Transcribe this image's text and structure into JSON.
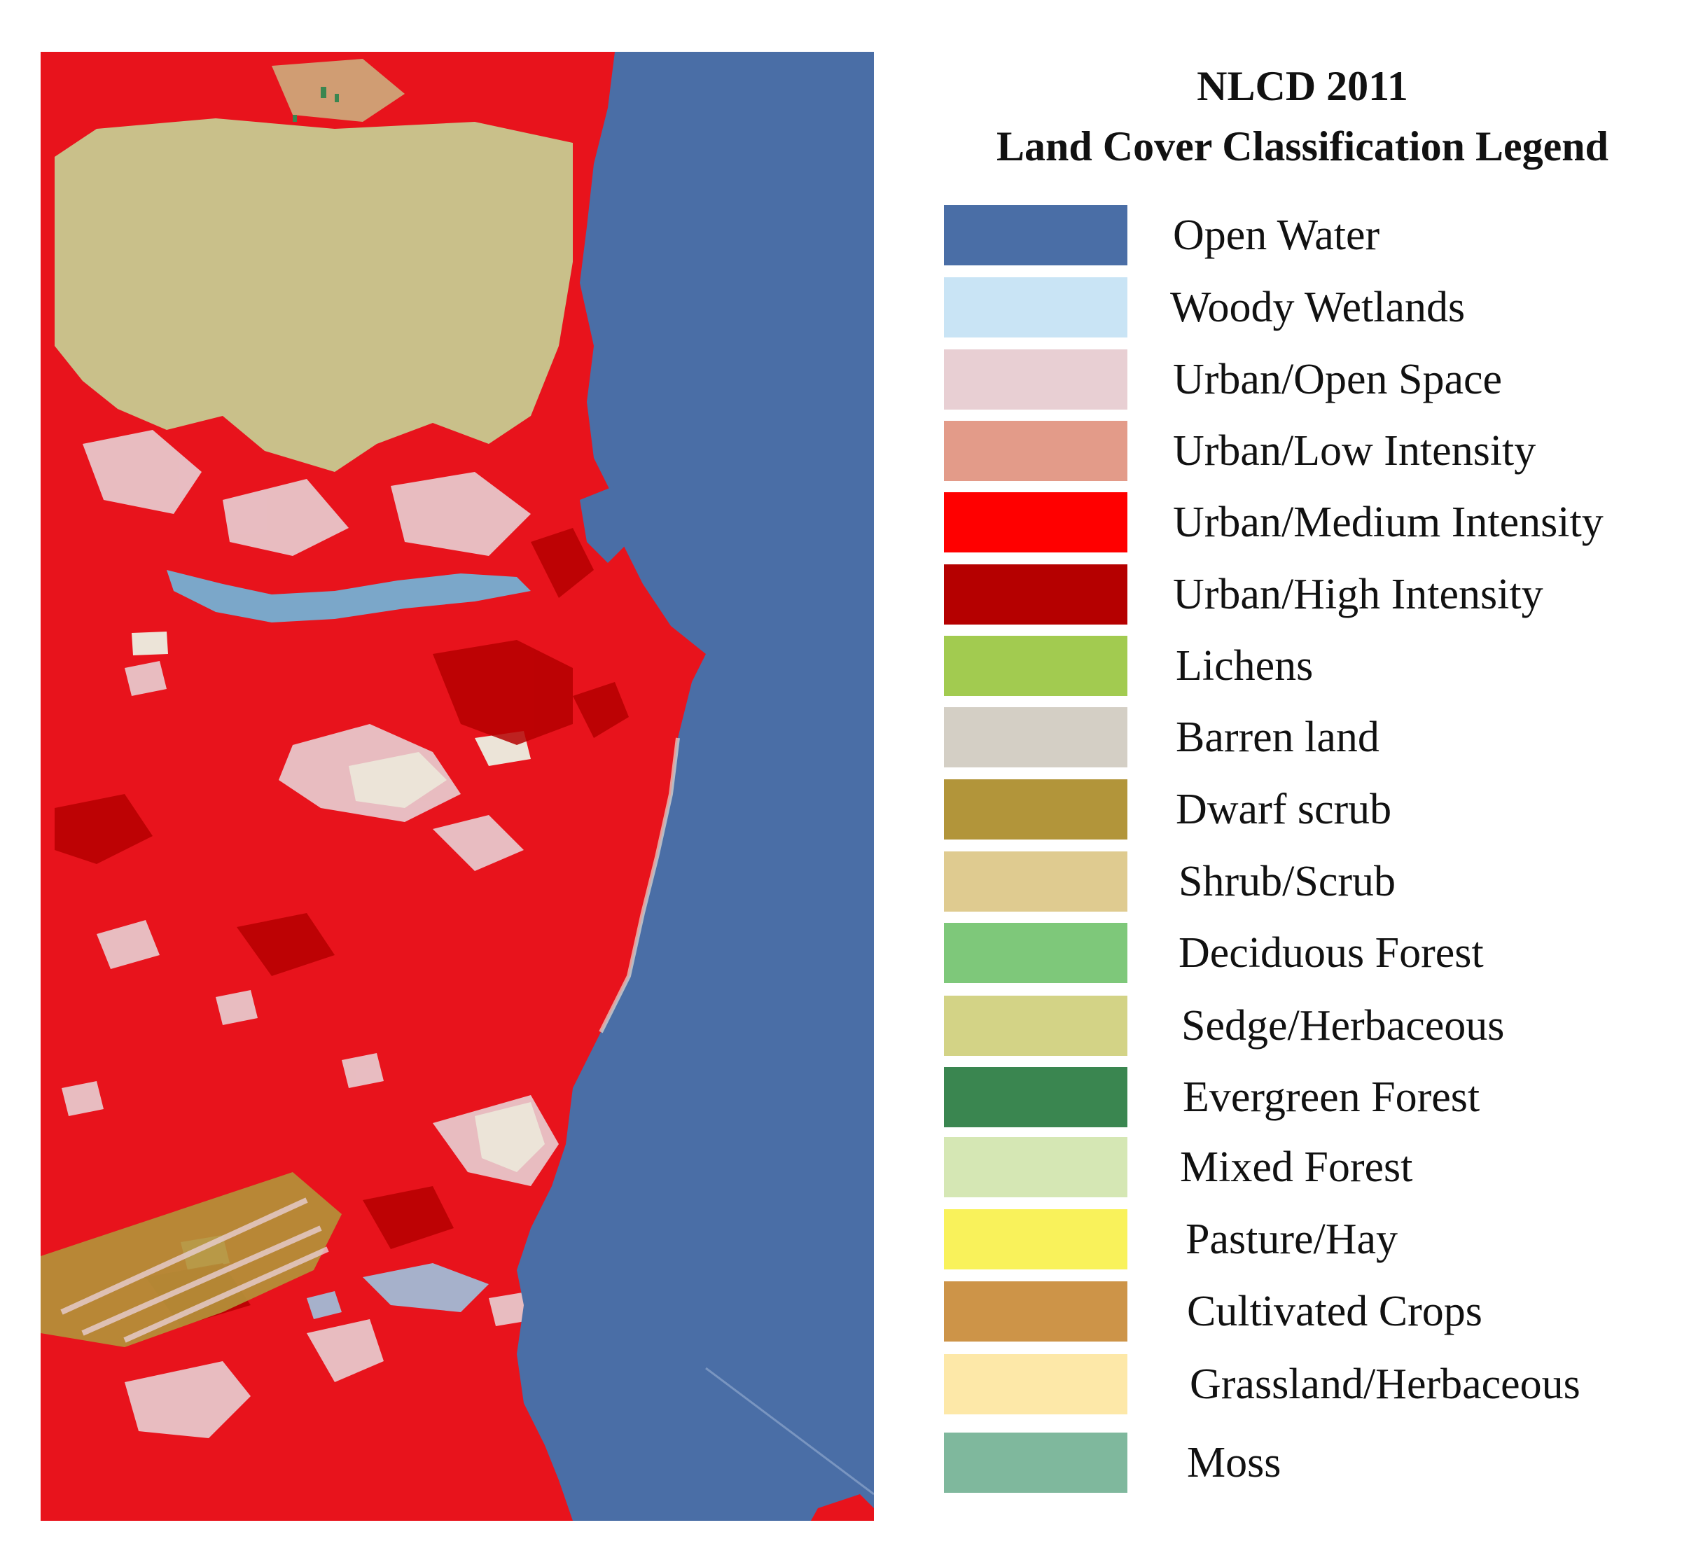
{
  "legend": {
    "title_line1": "NLCD 2011",
    "title_line2": "Land Cover Classification Legend",
    "items": [
      {
        "label": "Open Water",
        "color": "#4a6ea6"
      },
      {
        "label": "Woody Wetlands",
        "color": "#c9e4f5"
      },
      {
        "label": "Urban/Open Space",
        "color": "#e8cfd3"
      },
      {
        "label": "Urban/Low Intensity",
        "color": "#e39b89"
      },
      {
        "label": "Urban/Medium Intensity",
        "color": "#ff0000"
      },
      {
        "label": "Urban/High Intensity",
        "color": "#b50000"
      },
      {
        "label": "Lichens",
        "color": "#a2cb50"
      },
      {
        "label": "Barren land",
        "color": "#d4cfc5"
      },
      {
        "label": "Dwarf scrub",
        "color": "#b2953a"
      },
      {
        "label": "Shrub/Scrub",
        "color": "#dfcb90"
      },
      {
        "label": "Deciduous Forest",
        "color": "#7ec87a"
      },
      {
        "label": "Sedge/Herbaceous",
        "color": "#d3d386"
      },
      {
        "label": "Evergreen Forest",
        "color": "#3a8650"
      },
      {
        "label": "Mixed Forest",
        "color": "#d5e7b4"
      },
      {
        "label": "Pasture/Hay",
        "color": "#f9f25b"
      },
      {
        "label": "Cultivated Crops",
        "color": "#cd9448"
      },
      {
        "label": "Grassland/Herbaceous",
        "color": "#fde8a8"
      },
      {
        "label": "Moss",
        "color": "#7fb89d"
      }
    ]
  },
  "map_colors": {
    "water": "#4a6ea6",
    "urban_medium": "#e8131c",
    "urban_high": "#b50000",
    "urban_open": "#e8cfd3",
    "barren": "#e6dcd2",
    "sedge": "#c9c08a",
    "wetland": "#7ba7c9",
    "dwarf_scrub": "#b2953a",
    "evergreen": "#3a8650"
  }
}
